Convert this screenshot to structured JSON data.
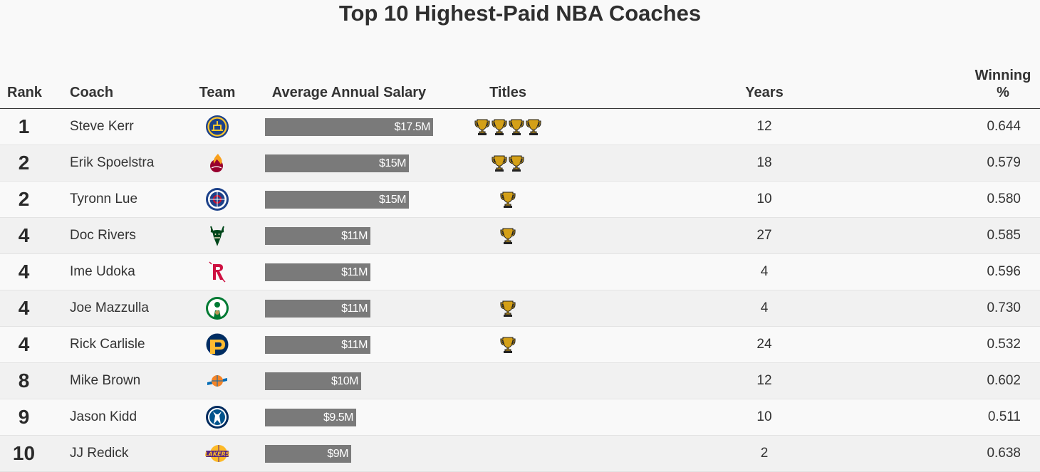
{
  "chart_data": {
    "type": "table",
    "title": "Top 10 Highest-Paid NBA Coaches",
    "columns": {
      "rank": "Rank",
      "coach": "Coach",
      "team": "Team",
      "salary": "Average Annual Salary",
      "titles": "Titles",
      "years": "Years",
      "win_pct": "Winning %"
    },
    "salary_max": 17.5,
    "rows": [
      {
        "rank": "1",
        "coach": "Steve Kerr",
        "team_icon": "warriors-logo-icon",
        "team_color": "#1d428a",
        "salary": 17.5,
        "salary_label": "$17.5M",
        "titles": 4,
        "years": "12",
        "win_pct": "0.644"
      },
      {
        "rank": "2",
        "coach": "Erik Spoelstra",
        "team_icon": "heat-logo-icon",
        "team_color": "#98002e",
        "salary": 15,
        "salary_label": "$15M",
        "titles": 2,
        "years": "18",
        "win_pct": "0.579"
      },
      {
        "rank": "2",
        "coach": "Tyronn Lue",
        "team_icon": "clippers-logo-icon",
        "team_color": "#1d428a",
        "salary": 15,
        "salary_label": "$15M",
        "titles": 1,
        "years": "10",
        "win_pct": "0.580"
      },
      {
        "rank": "4",
        "coach": "Doc Rivers",
        "team_icon": "bucks-logo-icon",
        "team_color": "#00471b",
        "salary": 11,
        "salary_label": "$11M",
        "titles": 1,
        "years": "27",
        "win_pct": "0.585"
      },
      {
        "rank": "4",
        "coach": "Ime Udoka",
        "team_icon": "rockets-logo-icon",
        "team_color": "#ce1141",
        "salary": 11,
        "salary_label": "$11M",
        "titles": 0,
        "years": "4",
        "win_pct": "0.596"
      },
      {
        "rank": "4",
        "coach": "Joe Mazzulla",
        "team_icon": "celtics-logo-icon",
        "team_color": "#007a33",
        "salary": 11,
        "salary_label": "$11M",
        "titles": 1,
        "years": "4",
        "win_pct": "0.730"
      },
      {
        "rank": "4",
        "coach": "Rick Carlisle",
        "team_icon": "pacers-logo-icon",
        "team_color": "#002d62",
        "salary": 11,
        "salary_label": "$11M",
        "titles": 1,
        "years": "24",
        "win_pct": "0.532"
      },
      {
        "rank": "8",
        "coach": "Mike Brown",
        "team_icon": "knicks-logo-icon",
        "team_color": "#f58426",
        "salary": 10,
        "salary_label": "$10M",
        "titles": 0,
        "years": "12",
        "win_pct": "0.602"
      },
      {
        "rank": "9",
        "coach": "Jason Kidd",
        "team_icon": "mavericks-logo-icon",
        "team_color": "#00538c",
        "salary": 9.5,
        "salary_label": "$9.5M",
        "titles": 0,
        "years": "10",
        "win_pct": "0.511"
      },
      {
        "rank": "10",
        "coach": "JJ Redick",
        "team_icon": "lakers-logo-icon",
        "team_color": "#552583",
        "salary": 9,
        "salary_label": "$9M",
        "titles": 0,
        "years": "2",
        "win_pct": "0.638"
      }
    ],
    "colors": {
      "bar": "#7a7a7a",
      "trophy": "#d4a017"
    }
  }
}
